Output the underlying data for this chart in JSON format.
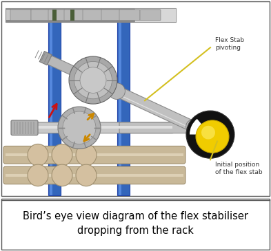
{
  "title": "Bird’s eye view diagram of the flex stabiliser\ndropping from the rack",
  "title_fontsize": 10.5,
  "fig_width": 3.93,
  "fig_height": 3.65,
  "bg_color": "#ffffff",
  "label_flex_stab": "Flex Stab\npivoting",
  "label_initial": "Initial position\nof the flex stab",
  "arrow_yellow": "#d4c020",
  "rack_color": "#4070b0",
  "pipe_color": "#c8b898",
  "pipe_dark": "#a09070",
  "metal_light": "#d0d0d0",
  "metal_mid": "#b0b0b0",
  "metal_dark": "#888888",
  "red_arrow": "#cc1111",
  "orange_arrow": "#cc8800",
  "rack_bg": "#c8c8c8",
  "rack_seg": "#b0b0b0",
  "rack_green": "#4a5e38"
}
